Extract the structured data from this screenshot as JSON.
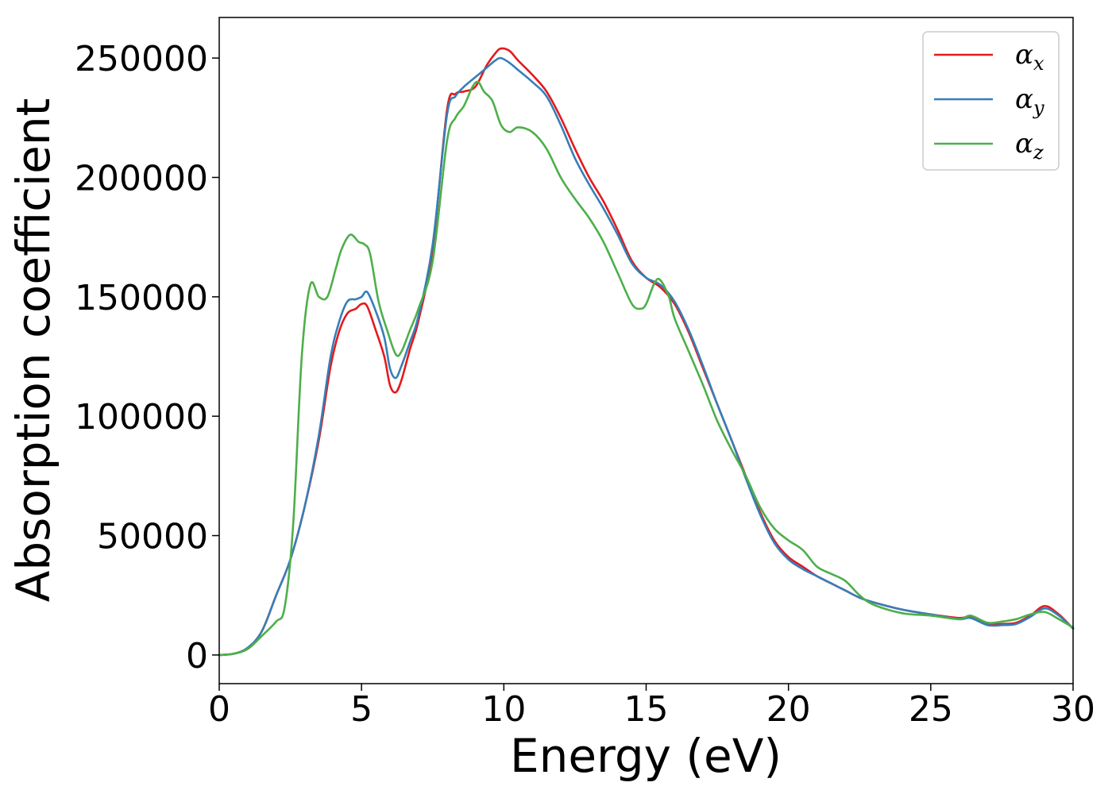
{
  "chart_data": {
    "type": "line",
    "xlabel": "Energy (eV)",
    "ylabel": "Absorption coefficient",
    "xlim": [
      0,
      30
    ],
    "ylim": [
      -12000,
      267000
    ],
    "xticks": [
      0,
      5,
      10,
      15,
      20,
      25,
      30
    ],
    "yticks": [
      0,
      50000,
      100000,
      150000,
      200000,
      250000
    ],
    "grid": false,
    "legend_position": "top-right",
    "series": [
      {
        "name": "α",
        "subscript": "x",
        "color": "#e41a1c",
        "x": [
          0,
          0.5,
          1,
          1.5,
          2,
          2.5,
          3,
          3.5,
          3.9,
          4.2,
          4.5,
          4.8,
          5.0,
          5.2,
          5.5,
          5.8,
          6.0,
          6.2,
          6.4,
          6.7,
          7.0,
          7.5,
          8.0,
          8.3,
          8.6,
          9.0,
          9.4,
          9.7,
          9.9,
          10.2,
          10.5,
          11.0,
          11.5,
          12.0,
          12.5,
          13.0,
          13.5,
          14.0,
          14.5,
          15.0,
          15.5,
          16.0,
          16.5,
          17.0,
          17.5,
          18.0,
          18.5,
          19.0,
          19.5,
          20.0,
          20.5,
          21.0,
          21.5,
          22.0,
          22.5,
          23.0,
          24.0,
          25.0,
          26.0,
          26.4,
          27.0,
          27.5,
          28.0,
          28.5,
          29.0,
          29.5,
          30.0
        ],
        "y": [
          0,
          500,
          3000,
          10000,
          25000,
          40000,
          62000,
          90000,
          120000,
          135000,
          143000,
          145000,
          147000,
          146000,
          136000,
          125000,
          113000,
          110000,
          115000,
          128000,
          140000,
          170000,
          228000,
          235000,
          236000,
          238000,
          247000,
          252000,
          254000,
          253000,
          249000,
          243000,
          236000,
          225000,
          212000,
          200000,
          190000,
          178000,
          165000,
          158000,
          154000,
          147000,
          135000,
          120000,
          105000,
          90000,
          75000,
          60000,
          48000,
          41000,
          37000,
          33000,
          30000,
          27000,
          24000,
          22000,
          19000,
          17000,
          15500,
          16000,
          13000,
          13000,
          13500,
          16500,
          20500,
          17000,
          11000
        ]
      },
      {
        "name": "α",
        "subscript": "y",
        "color": "#377eb8",
        "x": [
          0,
          0.5,
          1,
          1.5,
          2,
          2.5,
          3,
          3.5,
          3.9,
          4.2,
          4.5,
          4.8,
          5.0,
          5.2,
          5.5,
          5.8,
          6.0,
          6.2,
          6.4,
          6.7,
          7.0,
          7.5,
          8.0,
          8.3,
          8.6,
          9.0,
          9.4,
          9.7,
          9.9,
          10.2,
          10.5,
          11.0,
          11.5,
          12.0,
          12.5,
          13.0,
          13.5,
          14.0,
          14.5,
          15.0,
          15.5,
          16.0,
          16.5,
          17.0,
          17.5,
          18.0,
          18.5,
          19.0,
          19.5,
          20.0,
          20.5,
          21.0,
          21.5,
          22.0,
          22.5,
          23.0,
          24.0,
          25.0,
          26.0,
          26.4,
          27.0,
          27.5,
          28.0,
          28.5,
          29.0,
          29.5,
          30.0
        ],
        "y": [
          0,
          500,
          3000,
          10000,
          25000,
          40000,
          62000,
          92000,
          124000,
          139000,
          148000,
          149000,
          150000,
          152000,
          144000,
          133000,
          120000,
          116000,
          121000,
          131000,
          142000,
          172000,
          226000,
          234000,
          238000,
          242000,
          246000,
          249000,
          250000,
          248000,
          245000,
          240000,
          234000,
          222000,
          208000,
          197000,
          187000,
          176000,
          164000,
          158000,
          155000,
          148000,
          136000,
          121000,
          105000,
          90000,
          74000,
          59000,
          47000,
          40000,
          36000,
          33000,
          30000,
          27000,
          24000,
          22000,
          19000,
          17000,
          15000,
          15500,
          12500,
          12500,
          13000,
          16000,
          19500,
          16500,
          11000
        ]
      },
      {
        "name": "α",
        "subscript": "z",
        "color": "#4daf4a",
        "x": [
          0,
          0.5,
          1,
          1.5,
          2,
          2.3,
          2.6,
          2.9,
          3.2,
          3.5,
          3.8,
          4.1,
          4.3,
          4.6,
          4.9,
          5.1,
          5.3,
          5.6,
          5.9,
          6.2,
          6.4,
          6.7,
          7.0,
          7.5,
          8.0,
          8.3,
          8.6,
          8.9,
          9.1,
          9.3,
          9.6,
          9.9,
          10.2,
          10.5,
          11.0,
          11.5,
          12.0,
          12.5,
          13.0,
          13.5,
          14.0,
          14.5,
          14.8,
          15.0,
          15.3,
          15.5,
          15.8,
          16.0,
          16.5,
          17.0,
          17.5,
          18.0,
          18.5,
          19.0,
          19.5,
          20.0,
          20.5,
          21.0,
          21.5,
          22.0,
          22.5,
          23.0,
          24.0,
          25.0,
          26.0,
          26.4,
          27.0,
          27.5,
          28.0,
          28.5,
          29.0,
          29.5,
          30.0
        ],
        "y": [
          0,
          500,
          2500,
          8000,
          14000,
          20000,
          55000,
          125000,
          155000,
          150000,
          150000,
          162000,
          170000,
          176000,
          173000,
          172000,
          168000,
          148000,
          136000,
          126000,
          127000,
          136000,
          145000,
          165000,
          215000,
          225000,
          230000,
          238000,
          240000,
          236000,
          232000,
          222000,
          219000,
          221000,
          219000,
          212000,
          200000,
          191000,
          183000,
          173000,
          160000,
          147000,
          145000,
          147000,
          156000,
          157000,
          150000,
          141000,
          127000,
          113000,
          98000,
          86000,
          75000,
          62000,
          53000,
          48000,
          44000,
          37000,
          34000,
          31000,
          25000,
          21000,
          17500,
          16500,
          15000,
          16500,
          13500,
          14000,
          15000,
          17000,
          18000,
          15000,
          11500
        ]
      }
    ]
  }
}
